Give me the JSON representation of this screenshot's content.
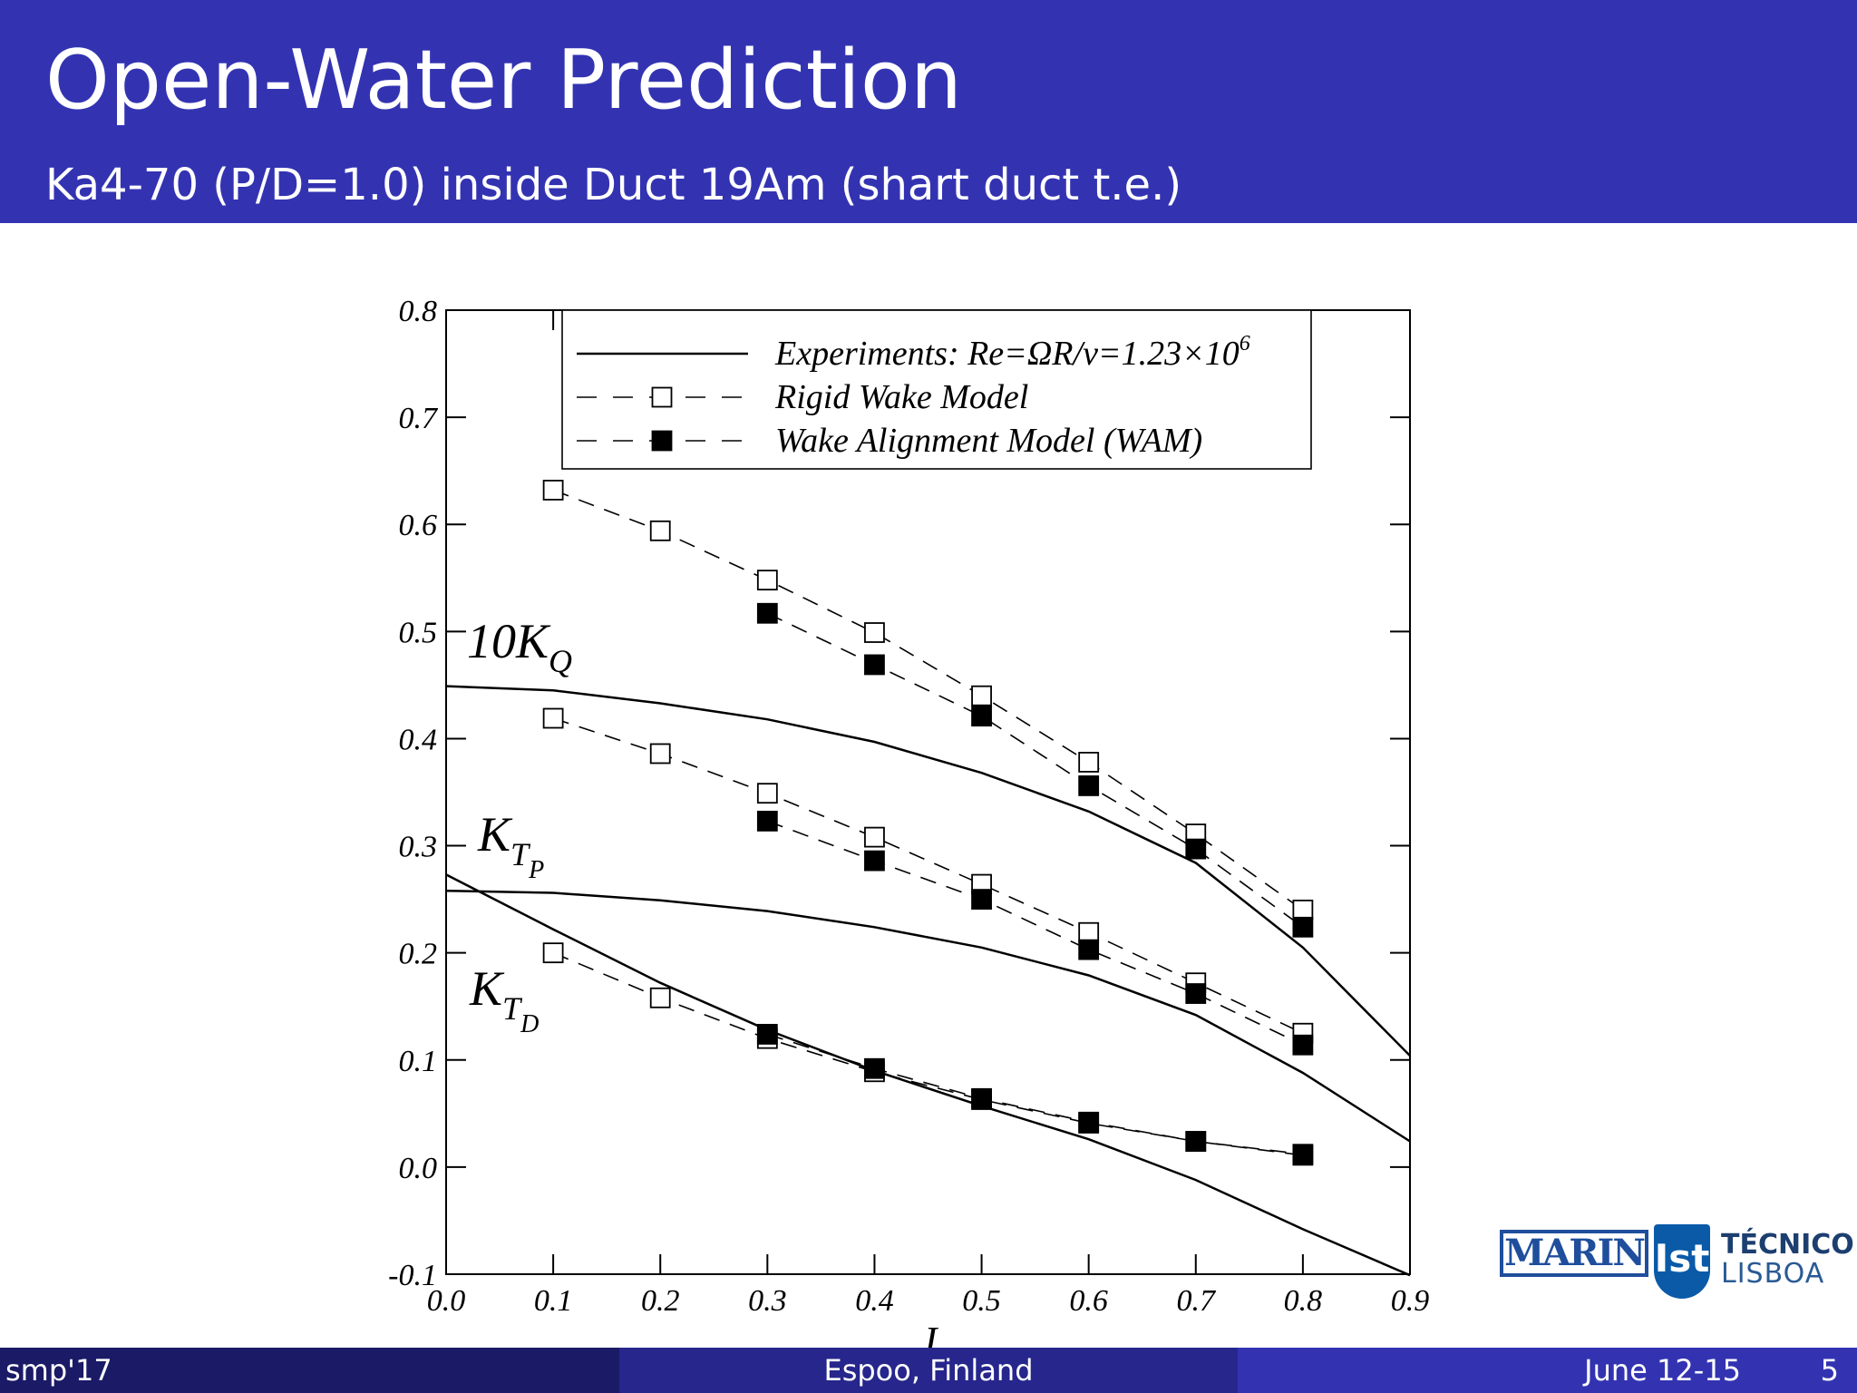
{
  "slide": {
    "title": "Open-Water Prediction",
    "subtitle": "Ka4-70 (P/D=1.0) inside Duct 19Am (shart duct t.e.)"
  },
  "footer": {
    "left": "smp'17",
    "center": "Espoo, Finland",
    "date": "June 12-15",
    "page": "5"
  },
  "logos": {
    "marin": "MARIN",
    "ist_line1": "TÉCNICO",
    "ist_line2": "LISBOA"
  },
  "chart_data": {
    "type": "line",
    "xlabel": "J",
    "ylabel": "",
    "xlim": [
      0.0,
      0.9
    ],
    "ylim": [
      -0.1,
      0.8
    ],
    "xticks": [
      "0.0",
      "0.1",
      "0.2",
      "0.3",
      "0.4",
      "0.5",
      "0.6",
      "0.7",
      "0.8",
      "0.9"
    ],
    "yticks": [
      "-0.1",
      "0.0",
      "0.1",
      "0.2",
      "0.3",
      "0.4",
      "0.5",
      "0.6",
      "0.7",
      "0.8"
    ],
    "grid": false,
    "legend_position": "top-right",
    "legend": [
      {
        "label": "Experiments: Re=ΩR/ν=1.23×10",
        "sup": "6",
        "style": "solid"
      },
      {
        "label": "Rigid Wake Model",
        "style": "dashed-open-square"
      },
      {
        "label": "Wake Alignment Model (WAM)",
        "style": "dashed-filled-square"
      }
    ],
    "curve_labels": [
      {
        "main": "10K",
        "sub": "Q",
        "subsub": ""
      },
      {
        "main": "K",
        "sub": "T",
        "subsub": "P"
      },
      {
        "main": "K",
        "sub": "T",
        "subsub": "D"
      }
    ],
    "series": [
      {
        "group": "10KQ",
        "model": "experiments",
        "x": [
          0.0,
          0.1,
          0.2,
          0.3,
          0.4,
          0.5,
          0.6,
          0.7,
          0.8,
          0.9
        ],
        "values": [
          0.449,
          0.445,
          0.433,
          0.418,
          0.397,
          0.368,
          0.332,
          0.284,
          0.205,
          0.104
        ]
      },
      {
        "group": "10KQ",
        "model": "rigid_wake",
        "x": [
          0.1,
          0.2,
          0.3,
          0.4,
          0.5,
          0.6,
          0.7,
          0.8
        ],
        "values": [
          0.632,
          0.594,
          0.548,
          0.499,
          0.44,
          0.378,
          0.311,
          0.24
        ]
      },
      {
        "group": "10KQ",
        "model": "wake_alignment",
        "x": [
          0.3,
          0.4,
          0.5,
          0.6,
          0.7,
          0.8
        ],
        "values": [
          0.517,
          0.469,
          0.421,
          0.356,
          0.297,
          0.224
        ]
      },
      {
        "group": "KTP",
        "model": "experiments",
        "x": [
          0.0,
          0.1,
          0.2,
          0.3,
          0.4,
          0.5,
          0.6,
          0.7,
          0.8,
          0.9
        ],
        "values": [
          0.258,
          0.256,
          0.249,
          0.239,
          0.224,
          0.205,
          0.179,
          0.142,
          0.088,
          0.024
        ]
      },
      {
        "group": "KTP",
        "model": "rigid_wake",
        "x": [
          0.1,
          0.2,
          0.3,
          0.4,
          0.5,
          0.6,
          0.7,
          0.8
        ],
        "values": [
          0.419,
          0.386,
          0.349,
          0.308,
          0.264,
          0.219,
          0.172,
          0.125
        ]
      },
      {
        "group": "KTP",
        "model": "wake_alignment",
        "x": [
          0.3,
          0.4,
          0.5,
          0.6,
          0.7,
          0.8
        ],
        "values": [
          0.323,
          0.286,
          0.25,
          0.203,
          0.162,
          0.114
        ]
      },
      {
        "group": "KTD",
        "model": "experiments",
        "x": [
          0.0,
          0.1,
          0.2,
          0.3,
          0.4,
          0.5,
          0.6,
          0.7,
          0.8,
          0.9
        ],
        "values": [
          0.273,
          0.222,
          0.172,
          0.128,
          0.09,
          0.057,
          0.026,
          -0.012,
          -0.058,
          -0.101
        ]
      },
      {
        "group": "KTD",
        "model": "rigid_wake",
        "x": [
          0.1,
          0.2,
          0.3,
          0.4,
          0.5,
          0.6,
          0.7,
          0.8
        ],
        "values": [
          0.2,
          0.158,
          0.12,
          0.089,
          0.063,
          0.041,
          0.024,
          0.011
        ]
      },
      {
        "group": "KTD",
        "model": "wake_alignment",
        "x": [
          0.3,
          0.4,
          0.5,
          0.6,
          0.7,
          0.8
        ],
        "values": [
          0.124,
          0.092,
          0.064,
          0.042,
          0.024,
          0.012
        ]
      }
    ]
  }
}
